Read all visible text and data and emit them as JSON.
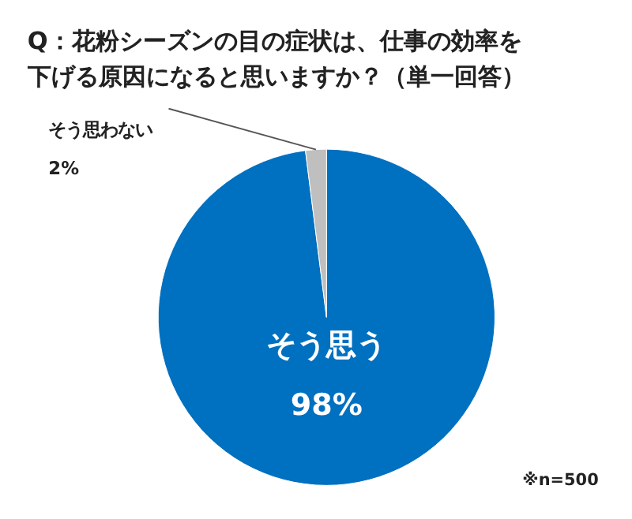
{
  "chart_data": {
    "type": "pie",
    "title": "Q：花粉シーズンの目の症状は、仕事の効率を下げる原因になると思いますか？（単一回答）",
    "categories": [
      "そう思う",
      "そう思わない"
    ],
    "values": [
      98,
      2
    ],
    "value_labels": [
      "98%",
      "2%"
    ],
    "colors": [
      "#0070c0",
      "#bfbfbf"
    ],
    "annotations": [
      "※n=500"
    ]
  }
}
